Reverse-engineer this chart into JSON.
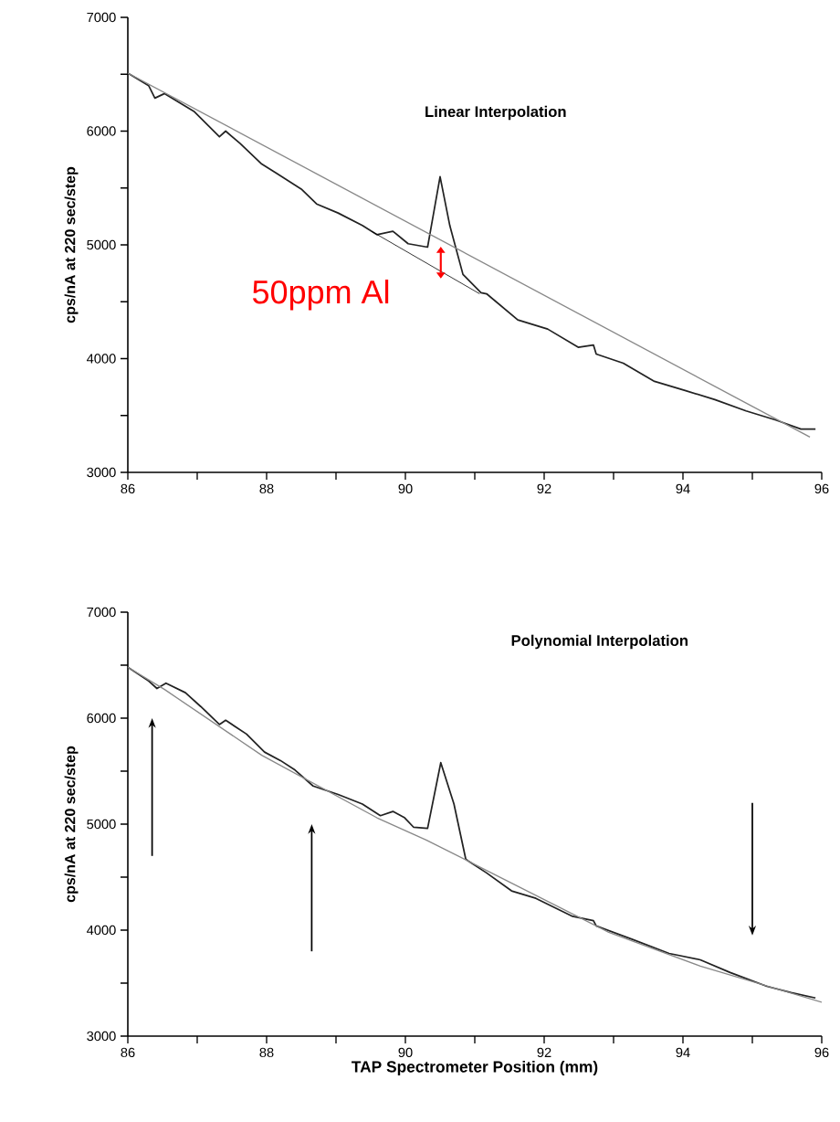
{
  "chart_data": [
    {
      "type": "line",
      "title": "Linear Interpolation",
      "ylabel": "cps/nA at 220 sec/step",
      "xlim": [
        86,
        96
      ],
      "ylim": [
        3000,
        7000
      ],
      "xticks": [
        86,
        {
          "value": 87,
          "label": null
        },
        88,
        {
          "value": 89,
          "label": null
        },
        90,
        {
          "value": 91,
          "label": null
        },
        92,
        {
          "value": 93,
          "label": null
        },
        94,
        {
          "value": 95,
          "label": null
        },
        96
      ],
      "yticks": [
        3000,
        {
          "value": 3500,
          "label": null
        },
        4000,
        {
          "value": 4500,
          "label": null
        },
        5000,
        {
          "value": 5500,
          "label": null
        },
        6000,
        {
          "value": 6500,
          "label": null
        },
        7000
      ],
      "annotations": [
        "50ppm Al"
      ],
      "series": [
        {
          "color": "#222222",
          "x": [
            86,
            86.3,
            86.39,
            86.53,
            86.96,
            87.32,
            87.41,
            87.62,
            87.93,
            88.14,
            88.5,
            88.72,
            89.03,
            89.38,
            89.59,
            89.82,
            90.04,
            90.32,
            90.5,
            90.64,
            90.83,
            91.09,
            91.17,
            91.62,
            92.05,
            92.49,
            92.71,
            92.75,
            93.14,
            93.59,
            94.03,
            94.46,
            94.91,
            95.34,
            95.7,
            95.91
          ],
          "values": [
            6510,
            6400,
            6290,
            6330,
            6170,
            5950,
            6000,
            5890,
            5710,
            5630,
            5490,
            5360,
            5280,
            5170,
            5090,
            5120,
            5010,
            4980,
            5600,
            5170,
            4740,
            4580,
            4570,
            4340,
            4260,
            4100,
            4120,
            4040,
            3960,
            3800,
            3720,
            3640,
            3540,
            3460,
            3380,
            3380
          ]
        },
        {
          "color": "#888888",
          "x": [
            86,
            95.83
          ],
          "values": [
            6510,
            3310
          ]
        },
        {
          "color": "#000000",
          "x": [
            89.51,
            91.07
          ],
          "values": [
            5120,
            4570
          ]
        }
      ]
    },
    {
      "type": "line",
      "title": "Polynomial Interpolation",
      "ylabel": "cps/nA at 220 sec/step",
      "xlabel": "TAP Spectrometer Position (mm)",
      "xlim": [
        86,
        96
      ],
      "ylim": [
        3000,
        7000
      ],
      "xticks": [
        86,
        {
          "value": 87,
          "label": null
        },
        88,
        {
          "value": 89,
          "label": null
        },
        90,
        {
          "value": 91,
          "label": null
        },
        92,
        {
          "value": 93,
          "label": null
        },
        94,
        {
          "value": 95,
          "label": null
        },
        96
      ],
      "yticks": [
        3000,
        {
          "value": 3500,
          "label": null
        },
        4000,
        {
          "value": 4500,
          "label": null
        },
        5000,
        {
          "value": 5500,
          "label": null
        },
        6000,
        {
          "value": 6500,
          "label": null
        },
        7000
      ],
      "series": [
        {
          "color": "#222222",
          "x": [
            86,
            86.3,
            86.42,
            86.55,
            86.83,
            87.05,
            87.32,
            87.41,
            87.71,
            87.97,
            88.2,
            88.41,
            88.67,
            89.03,
            89.38,
            89.64,
            89.82,
            89.99,
            90.12,
            90.32,
            90.51,
            90.7,
            90.87,
            90.91,
            91.17,
            91.53,
            91.88,
            92.41,
            92.71,
            92.75,
            93.28,
            93.8,
            94.25,
            94.68,
            95.21,
            95.56,
            95.91
          ],
          "values": [
            6480,
            6350,
            6280,
            6330,
            6240,
            6110,
            5940,
            5980,
            5850,
            5680,
            5600,
            5510,
            5360,
            5280,
            5190,
            5080,
            5120,
            5060,
            4970,
            4960,
            5580,
            5190,
            4670,
            4650,
            4540,
            4370,
            4300,
            4130,
            4090,
            4040,
            3910,
            3780,
            3720,
            3600,
            3470,
            3410,
            3360
          ]
        },
        {
          "color": "#888888",
          "x": [
            86,
            86.53,
            87.93,
            89.59,
            90.3,
            91.09,
            92.93,
            94.25,
            96
          ],
          "values": [
            6480,
            6270,
            5650,
            5060,
            4850,
            4590,
            3980,
            3660,
            3320
          ]
        }
      ]
    }
  ]
}
